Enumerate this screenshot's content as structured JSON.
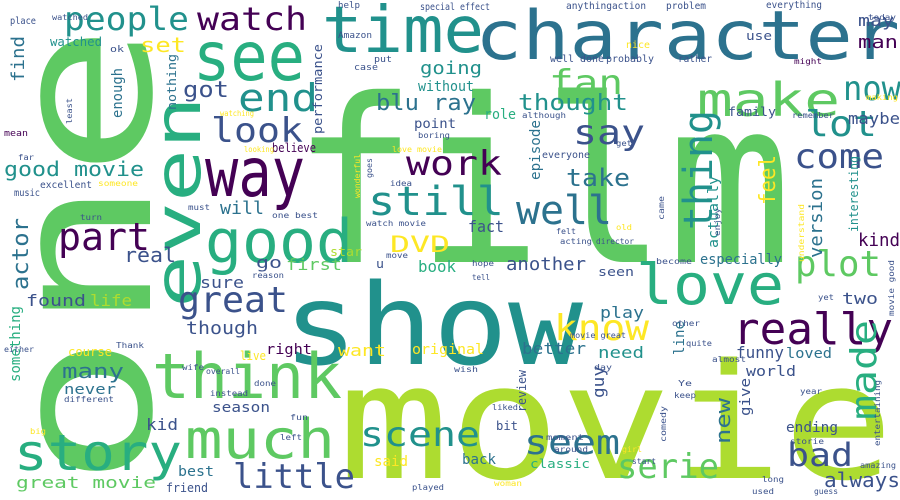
{
  "cloud": {
    "background": "#ffffff",
    "palette": {
      "purple": "#440154",
      "indigo": "#3b528b",
      "teal": "#2c728e",
      "tealgreen": "#21918c",
      "green": "#28ae80",
      "lightgreen": "#5ec962",
      "lime": "#addc30",
      "yellow": "#fde725"
    },
    "words": [
      {
        "text": "film"
      },
      {
        "text": "movie"
      },
      {
        "text": "one"
      },
      {
        "text": "show"
      },
      {
        "text": "character"
      },
      {
        "text": "time"
      },
      {
        "text": "see"
      },
      {
        "text": "even"
      },
      {
        "text": "way"
      },
      {
        "text": "good"
      },
      {
        "text": "think"
      },
      {
        "text": "love"
      },
      {
        "text": "make"
      },
      {
        "text": "story"
      },
      {
        "text": "much"
      },
      {
        "text": "really"
      },
      {
        "text": "people"
      },
      {
        "text": "watch"
      },
      {
        "text": "end"
      },
      {
        "text": "now"
      },
      {
        "text": "lot"
      },
      {
        "text": "fan"
      },
      {
        "text": "say"
      },
      {
        "text": "thing"
      },
      {
        "text": "look"
      },
      {
        "text": "still"
      },
      {
        "text": "well"
      },
      {
        "text": "work"
      },
      {
        "text": "come"
      },
      {
        "text": "part"
      },
      {
        "text": "great"
      },
      {
        "text": "plot"
      },
      {
        "text": "know"
      },
      {
        "text": "made"
      },
      {
        "text": "scene"
      },
      {
        "text": "seem"
      },
      {
        "text": "little"
      },
      {
        "text": "serie"
      },
      {
        "text": "bad"
      },
      {
        "text": "always"
      },
      {
        "text": "blu ray"
      },
      {
        "text": "thought"
      },
      {
        "text": "take"
      },
      {
        "text": "got"
      },
      {
        "text": "going"
      },
      {
        "text": "set"
      },
      {
        "text": "good movie"
      },
      {
        "text": "DVD"
      },
      {
        "text": "will"
      },
      {
        "text": "real"
      },
      {
        "text": "actor"
      },
      {
        "text": "version"
      },
      {
        "text": "feel"
      },
      {
        "text": "kind"
      },
      {
        "text": "maybe"
      },
      {
        "text": "man"
      },
      {
        "text": "may"
      },
      {
        "text": "find"
      },
      {
        "text": "watched"
      },
      {
        "text": "enough"
      },
      {
        "text": "nothing"
      },
      {
        "text": "performance"
      },
      {
        "text": "without"
      },
      {
        "text": "point"
      },
      {
        "text": "role"
      },
      {
        "text": "episode"
      },
      {
        "text": "fact"
      },
      {
        "text": "book"
      },
      {
        "text": "first"
      },
      {
        "text": "another"
      },
      {
        "text": "especially"
      },
      {
        "text": "sure"
      },
      {
        "text": "go"
      },
      {
        "text": "found"
      },
      {
        "text": "life"
      },
      {
        "text": "play"
      },
      {
        "text": "two"
      },
      {
        "text": "though"
      },
      {
        "text": "something"
      },
      {
        "text": "many"
      },
      {
        "text": "want"
      },
      {
        "text": "original"
      },
      {
        "text": "better"
      },
      {
        "text": "need"
      },
      {
        "text": "line"
      },
      {
        "text": "funny"
      },
      {
        "text": "loved"
      },
      {
        "text": "world"
      },
      {
        "text": "right"
      },
      {
        "text": "never"
      },
      {
        "text": "season"
      },
      {
        "text": "kid"
      },
      {
        "text": "best"
      },
      {
        "text": "great movie"
      },
      {
        "text": "new"
      },
      {
        "text": "give"
      },
      {
        "text": "ending"
      },
      {
        "text": "guy"
      },
      {
        "text": "review"
      },
      {
        "text": "seen"
      },
      {
        "text": "bit"
      },
      {
        "text": "said"
      },
      {
        "text": "back"
      },
      {
        "text": "classic"
      },
      {
        "text": "friend"
      },
      {
        "text": "course"
      },
      {
        "text": "live"
      },
      {
        "text": "actually"
      },
      {
        "text": "interesting"
      },
      {
        "text": "use"
      },
      {
        "text": "family"
      },
      {
        "text": "everyone"
      },
      {
        "text": "believe"
      },
      {
        "text": "excellent"
      },
      {
        "text": "music"
      },
      {
        "text": "place"
      },
      {
        "text": "watched"
      },
      {
        "text": "special effect"
      },
      {
        "text": "anything"
      },
      {
        "text": "action"
      },
      {
        "text": "problem"
      },
      {
        "text": "everything"
      },
      {
        "text": "today"
      },
      {
        "text": "well done"
      },
      {
        "text": "probably"
      },
      {
        "text": "nice"
      },
      {
        "text": "rather"
      },
      {
        "text": "might"
      },
      {
        "text": "making"
      },
      {
        "text": "remember"
      },
      {
        "text": "help"
      },
      {
        "text": "Amazon"
      },
      {
        "text": "put"
      },
      {
        "text": "case"
      },
      {
        "text": "ok"
      },
      {
        "text": "least"
      },
      {
        "text": "mean"
      },
      {
        "text": "far"
      },
      {
        "text": "looking"
      },
      {
        "text": "watching"
      },
      {
        "text": "although"
      },
      {
        "text": "boring"
      },
      {
        "text": "get"
      },
      {
        "text": "love movie"
      },
      {
        "text": "goes"
      },
      {
        "text": "idea"
      },
      {
        "text": "wonderful"
      },
      {
        "text": "someone"
      },
      {
        "text": "watch movie"
      },
      {
        "text": "one best"
      },
      {
        "text": "must"
      },
      {
        "text": "star"
      },
      {
        "text": "u"
      },
      {
        "text": "move"
      },
      {
        "text": "director"
      },
      {
        "text": "acting"
      },
      {
        "text": "felt"
      },
      {
        "text": "old"
      },
      {
        "text": "came"
      },
      {
        "text": "enjoy"
      },
      {
        "text": "understand"
      },
      {
        "text": "movie good"
      },
      {
        "text": "yet"
      },
      {
        "text": "become"
      },
      {
        "text": "hope"
      },
      {
        "text": "tell"
      },
      {
        "text": "reason"
      },
      {
        "text": "turn"
      },
      {
        "text": "Thank"
      },
      {
        "text": "either"
      },
      {
        "text": "wife"
      },
      {
        "text": "overall"
      },
      {
        "text": "movie great"
      },
      {
        "text": "start"
      },
      {
        "text": "other"
      },
      {
        "text": "quite"
      },
      {
        "text": "almost"
      },
      {
        "text": "wish"
      },
      {
        "text": "day"
      },
      {
        "text": "Ye"
      },
      {
        "text": "keep"
      },
      {
        "text": "year"
      },
      {
        "text": "different"
      },
      {
        "text": "instead"
      },
      {
        "text": "done"
      },
      {
        "text": "liked"
      },
      {
        "text": "comedy"
      },
      {
        "text": "big"
      },
      {
        "text": "fun"
      },
      {
        "text": "left"
      },
      {
        "text": "moment"
      },
      {
        "text": "around"
      },
      {
        "text": "girl"
      },
      {
        "text": "storie"
      },
      {
        "text": "entertaining"
      },
      {
        "text": "amazing"
      },
      {
        "text": "long"
      },
      {
        "text": "used"
      },
      {
        "text": "played"
      },
      {
        "text": "woman"
      },
      {
        "text": "guess"
      }
    ]
  }
}
